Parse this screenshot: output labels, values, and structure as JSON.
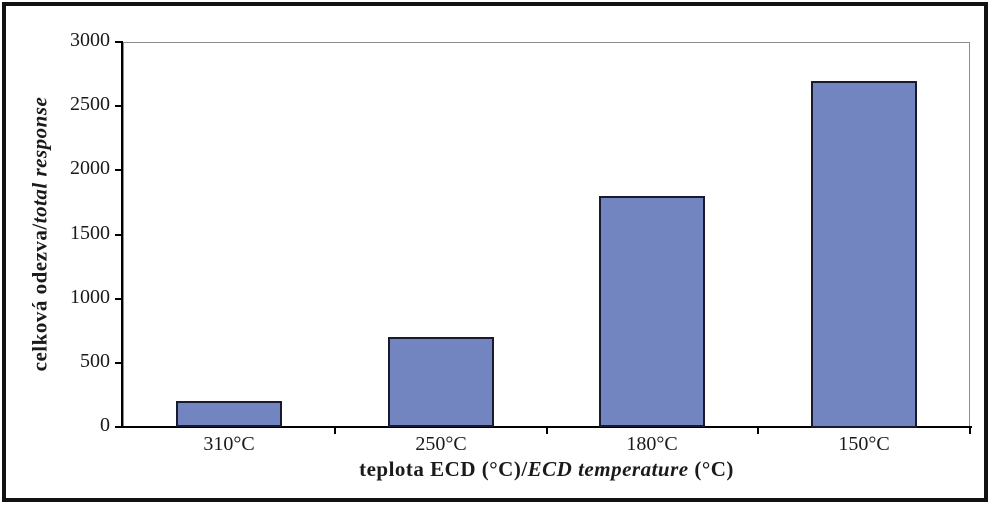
{
  "figure": {
    "background": "#FFFFFF",
    "frame_color": "#121212"
  },
  "chart_data": {
    "type": "bar",
    "title": "",
    "categories": [
      "310°C",
      "250°C",
      "180°C",
      "150°C"
    ],
    "values": [
      200,
      700,
      1800,
      2700
    ],
    "xlabel": "teplota ECD (°C)/ECD temperature (°C)",
    "xlabel_cs": "teplota ECD (°C)/",
    "xlabel_en_italic": "ECD temperature",
    "xlabel_suffix": " (°C)",
    "ylabel": "celková odezva/total response",
    "ylabel_cs": "celková odezva",
    "ylabel_sep": "/",
    "ylabel_en_italic": "total response",
    "ylim": [
      0,
      3000
    ],
    "yticks": [
      0,
      500,
      1000,
      1500,
      2000,
      2500,
      3000
    ],
    "grid": false,
    "legend": "none",
    "bar_color": "#7385C1",
    "bar_border_color": "#1A1A2E",
    "axis_color": "#000000",
    "plot_border_color": "#8C8C8C",
    "text_color": "#1A1A1A"
  }
}
